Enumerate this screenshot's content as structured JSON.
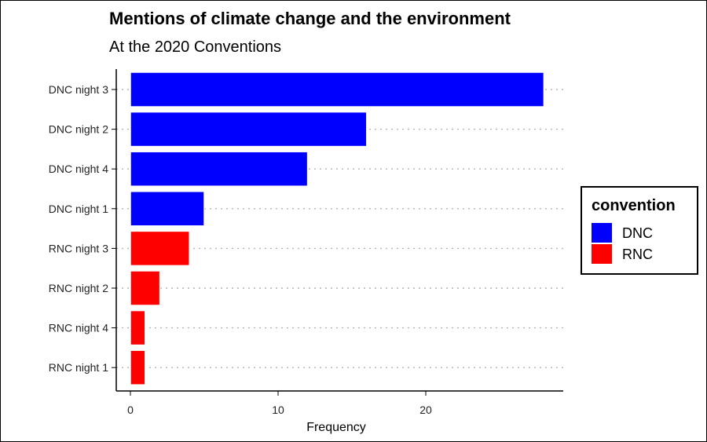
{
  "chart_data": {
    "type": "bar",
    "orientation": "horizontal",
    "title": "Mentions of climate change and the environment",
    "subtitle": "At the 2020 Conventions",
    "xlabel": "Frequency",
    "ylabel": "",
    "xlim": [
      0,
      28
    ],
    "x_ticks": [
      0,
      10,
      20
    ],
    "grid": "horizontal dotted",
    "legend": {
      "title": "convention",
      "placement": "right",
      "entries": [
        {
          "label": "DNC",
          "color": "#0000ff"
        },
        {
          "label": "RNC",
          "color": "#ff0000"
        }
      ]
    },
    "categories": [
      "DNC night 3",
      "DNC night 2",
      "DNC night 4",
      "DNC night 1",
      "RNC night 3",
      "RNC night 2",
      "RNC night 4",
      "RNC night 1"
    ],
    "values": [
      28,
      16,
      12,
      5,
      4,
      2,
      1,
      1
    ],
    "groups": [
      "DNC",
      "DNC",
      "DNC",
      "DNC",
      "RNC",
      "RNC",
      "RNC",
      "RNC"
    ]
  }
}
